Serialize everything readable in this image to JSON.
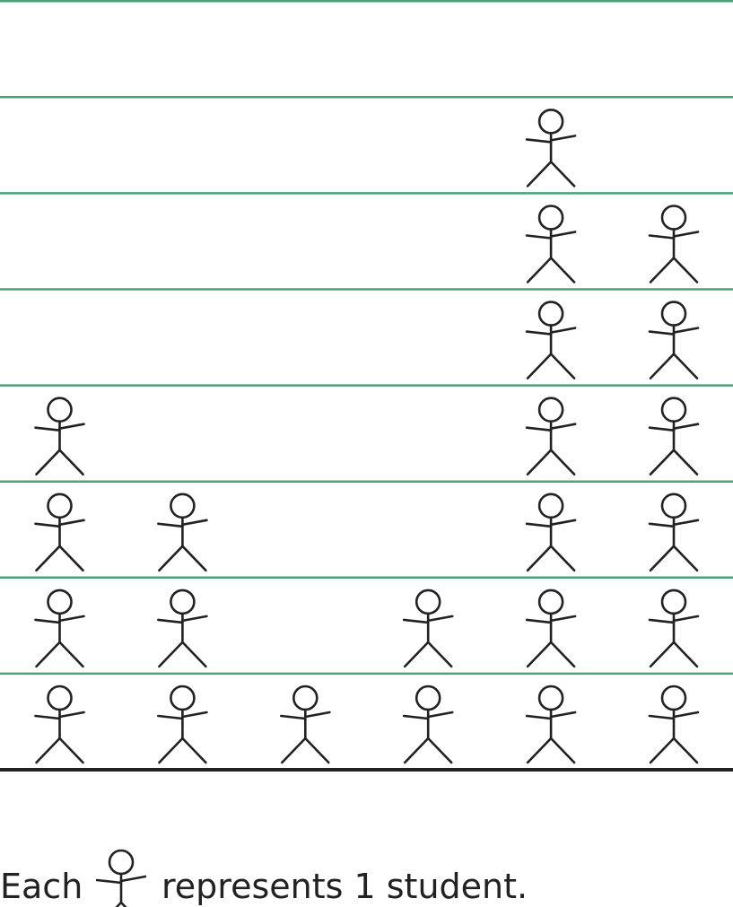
{
  "chart_data": {
    "type": "pictograph",
    "title": "",
    "xlabel": "",
    "ylabel": "",
    "categories": [
      "",
      "",
      "",
      "",
      "",
      ""
    ],
    "values": [
      4,
      3,
      1,
      2,
      7,
      6
    ],
    "ylim": [
      0,
      8
    ],
    "grid": true,
    "unit": 1
  },
  "legend": {
    "prefix": "Each",
    "suffix": "represents 1 student."
  },
  "colors": {
    "grid": "#4aa37a",
    "axis": "#222222",
    "icon": "#222222"
  },
  "icons": {
    "student": "stick-figure-icon"
  }
}
